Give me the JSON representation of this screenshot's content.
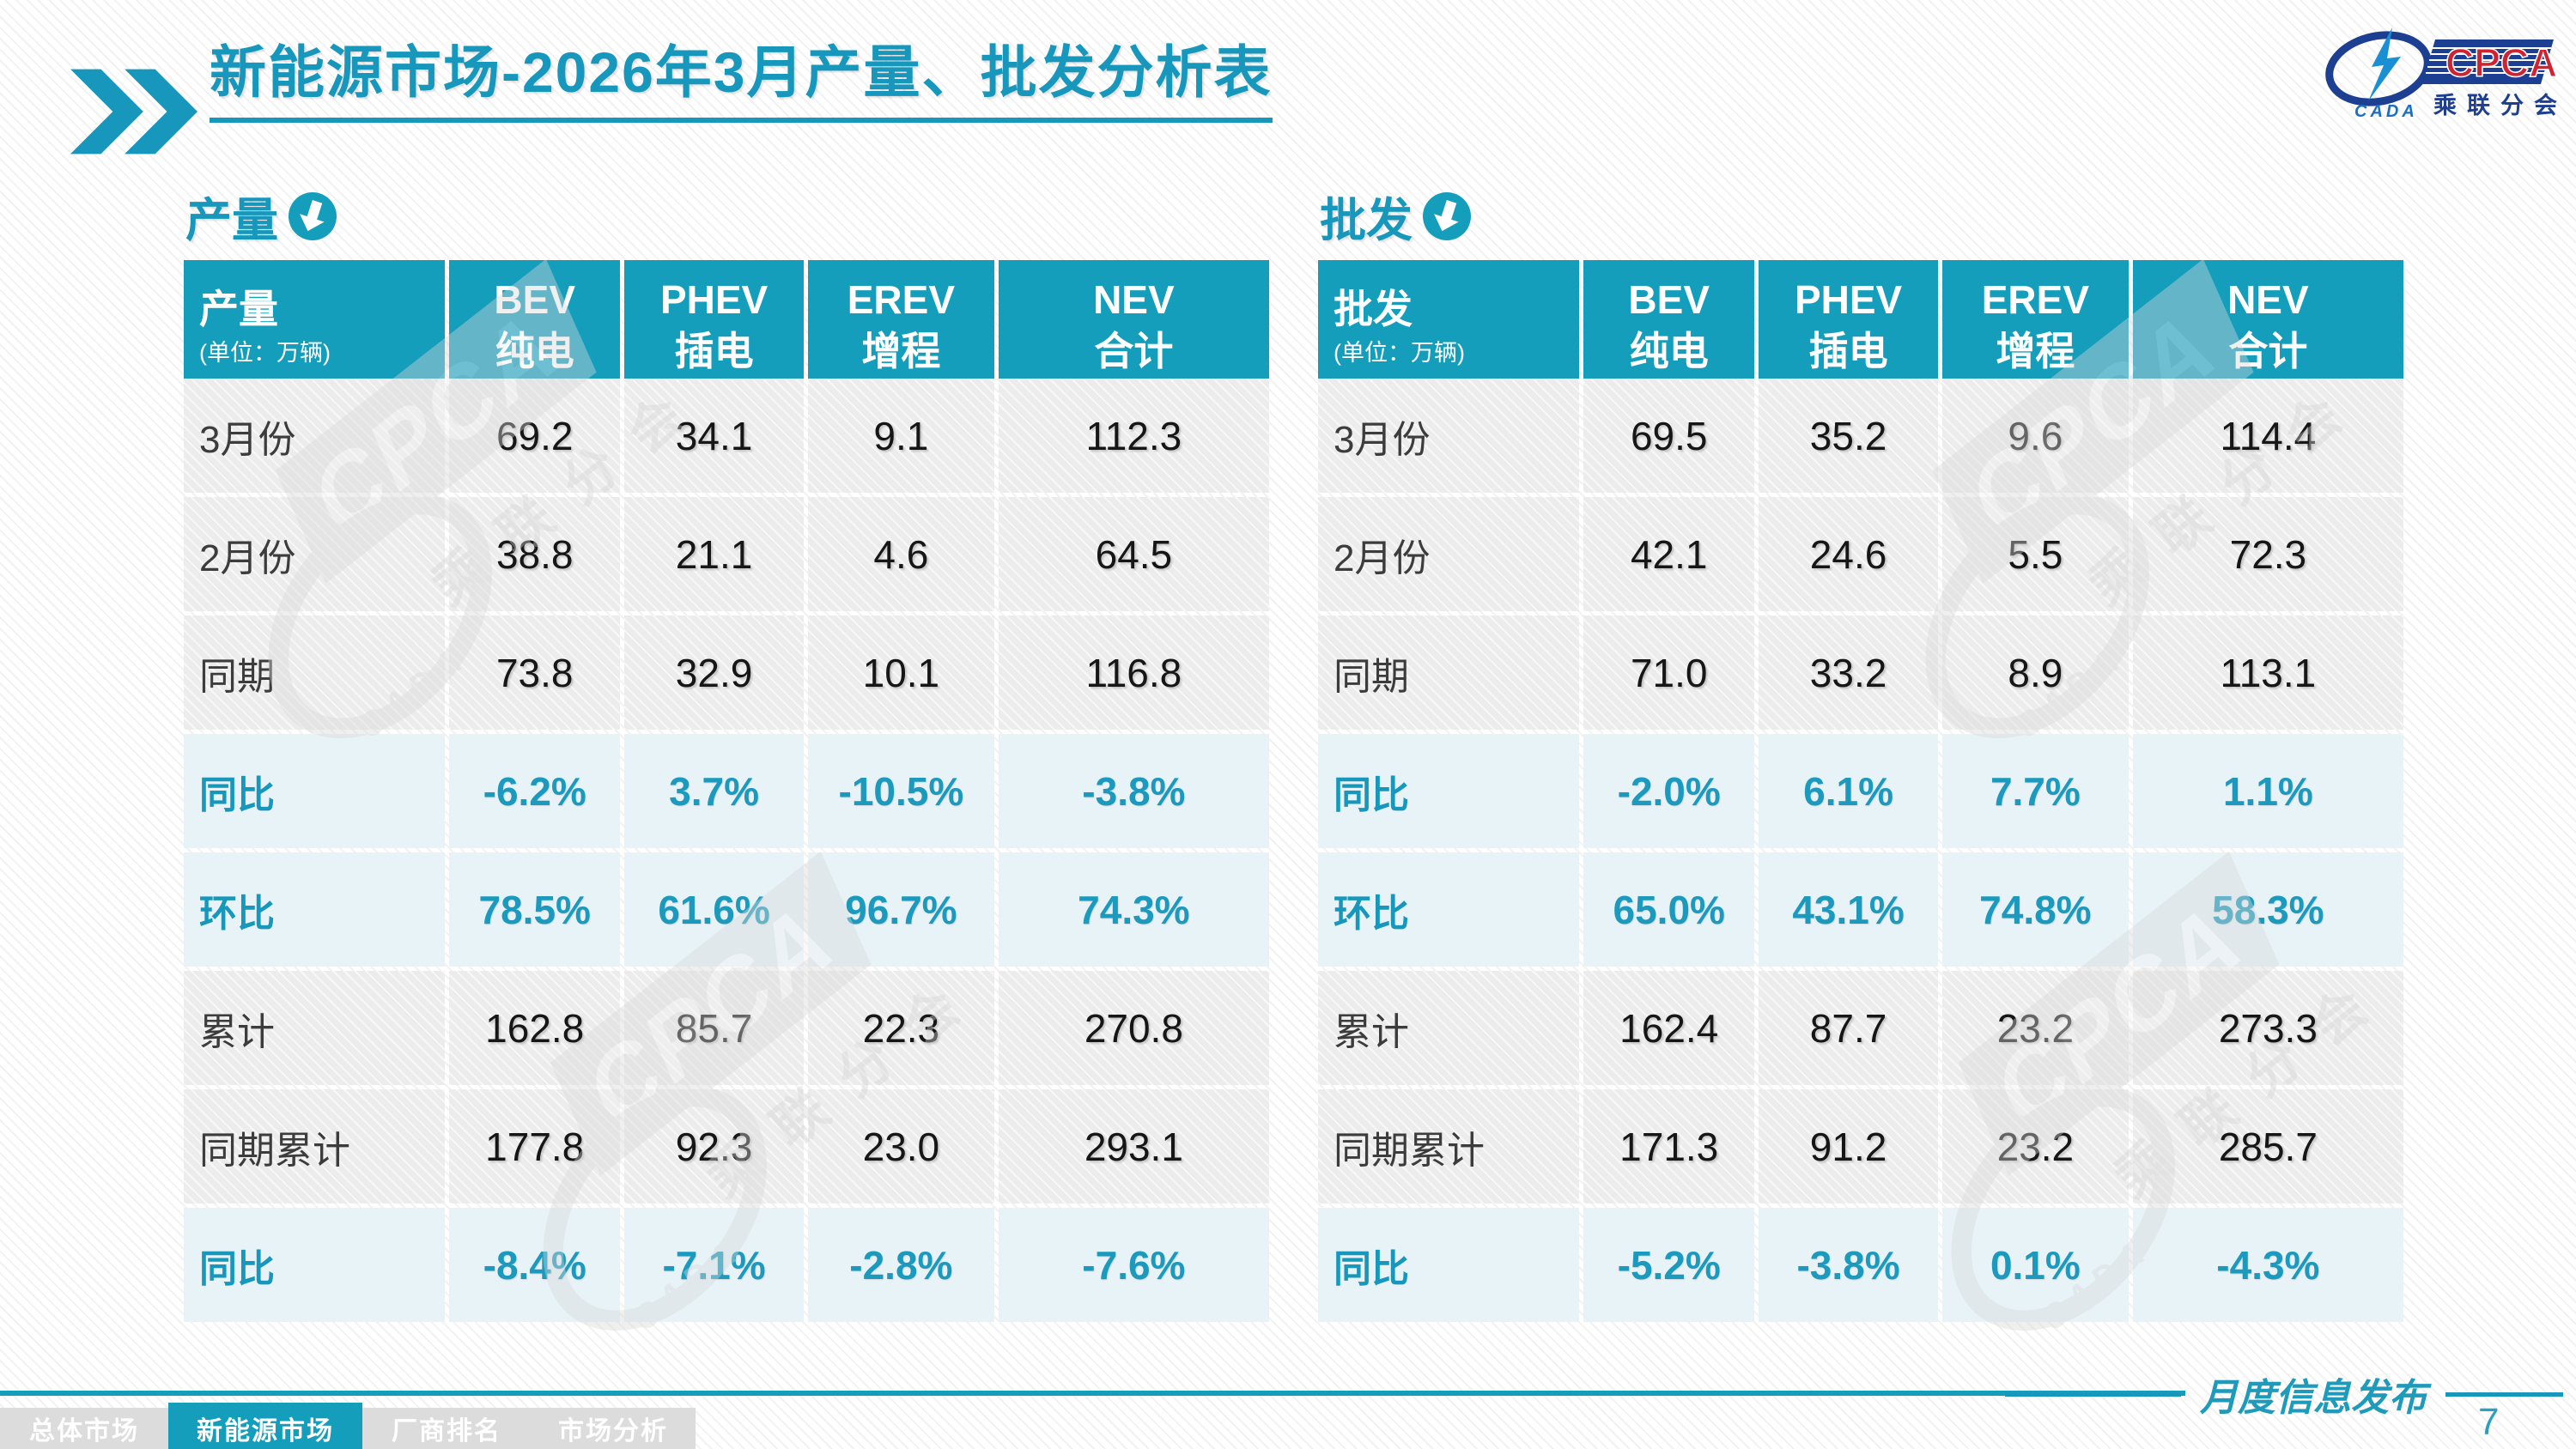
{
  "title": {
    "text": "新能源市场-2026年3月产量、批发分析表"
  },
  "logo": {
    "cpca": "CPCA",
    "subtitle": "乘联分会",
    "cada": "CADA"
  },
  "watermark": {
    "cpca": "CPCA",
    "sub": "乘联分会",
    "cada": "CADA"
  },
  "colors": {
    "teal": "#149EBC",
    "percent_text": "#1B9ABD",
    "row_gray": "#ececec",
    "row_blue": "#e8f3f8",
    "nav_gray": "#dcdcdc"
  },
  "tables": [
    {
      "section_label": "产量",
      "header": {
        "label": "产量",
        "unit": "(单位：万辆)",
        "columns": [
          {
            "en": "BEV",
            "cn": "纯电"
          },
          {
            "en": "PHEV",
            "cn": "插电"
          },
          {
            "en": "EREV",
            "cn": "增程"
          },
          {
            "en": "NEV",
            "cn": "合计"
          }
        ]
      },
      "rows": [
        {
          "label": "3月份",
          "type": "data",
          "values": [
            "69.2",
            "34.1",
            "9.1",
            "112.3"
          ]
        },
        {
          "label": "2月份",
          "type": "data",
          "values": [
            "38.8",
            "21.1",
            "4.6",
            "64.5"
          ]
        },
        {
          "label": "同期",
          "type": "data",
          "values": [
            "73.8",
            "32.9",
            "10.1",
            "116.8"
          ]
        },
        {
          "label": "同比",
          "type": "percent",
          "values": [
            "-6.2%",
            "3.7%",
            "-10.5%",
            "-3.8%"
          ]
        },
        {
          "label": "环比",
          "type": "percent",
          "values": [
            "78.5%",
            "61.6%",
            "96.7%",
            "74.3%"
          ]
        },
        {
          "label": "累计",
          "type": "data",
          "values": [
            "162.8",
            "85.7",
            "22.3",
            "270.8"
          ]
        },
        {
          "label": "同期累计",
          "type": "data",
          "values": [
            "177.8",
            "92.3",
            "23.0",
            "293.1"
          ]
        },
        {
          "label": "同比",
          "type": "percent",
          "values": [
            "-8.4%",
            "-7.1%",
            "-2.8%",
            "-7.6%"
          ]
        }
      ]
    },
    {
      "section_label": "批发",
      "header": {
        "label": "批发",
        "unit": "(单位：万辆)",
        "columns": [
          {
            "en": "BEV",
            "cn": "纯电"
          },
          {
            "en": "PHEV",
            "cn": "插电"
          },
          {
            "en": "EREV",
            "cn": "增程"
          },
          {
            "en": "NEV",
            "cn": "合计"
          }
        ]
      },
      "rows": [
        {
          "label": "3月份",
          "type": "data",
          "values": [
            "69.5",
            "35.2",
            "9.6",
            "114.4"
          ]
        },
        {
          "label": "2月份",
          "type": "data",
          "values": [
            "42.1",
            "24.6",
            "5.5",
            "72.3"
          ]
        },
        {
          "label": "同期",
          "type": "data",
          "values": [
            "71.0",
            "33.2",
            "8.9",
            "113.1"
          ]
        },
        {
          "label": "同比",
          "type": "percent",
          "values": [
            "-2.0%",
            "6.1%",
            "7.7%",
            "1.1%"
          ]
        },
        {
          "label": "环比",
          "type": "percent",
          "values": [
            "65.0%",
            "43.1%",
            "74.8%",
            "58.3%"
          ]
        },
        {
          "label": "累计",
          "type": "data",
          "values": [
            "162.4",
            "87.7",
            "23.2",
            "273.3"
          ]
        },
        {
          "label": "同期累计",
          "type": "data",
          "values": [
            "171.3",
            "91.2",
            "23.2",
            "285.7"
          ]
        },
        {
          "label": "同比",
          "type": "percent",
          "values": [
            "-5.2%",
            "-3.8%",
            "0.1%",
            "-4.3%"
          ]
        }
      ]
    }
  ],
  "footer": {
    "nav": [
      {
        "label": "总体市场",
        "active": false
      },
      {
        "label": "新能源市场",
        "active": true
      },
      {
        "label": "厂商排名",
        "active": false
      },
      {
        "label": "市场分析",
        "active": false
      }
    ],
    "publication": "月度信息发布",
    "page": "7"
  }
}
